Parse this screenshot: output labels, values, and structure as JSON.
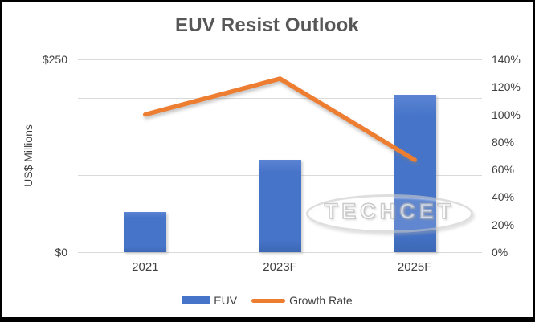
{
  "watermark": {
    "text": "TECHCET"
  },
  "colors": {
    "bar_blue": "#4674C8",
    "line_orange": "#ED7D31",
    "title_gray": "#575757",
    "axis_text": "#404040",
    "gridline": "#D9D9D9",
    "frame_border": "#000000",
    "watermark_gray": "#C3C3C3"
  },
  "chart_data": {
    "type": "combo-bar-line",
    "title": "EUV Resist Outlook",
    "categories": [
      "2021",
      "2023F",
      "2025F"
    ],
    "series": [
      {
        "name": "EUV",
        "type": "bar",
        "axis": "left",
        "unit": "US$ Millions",
        "values": [
          52,
          120,
          204
        ]
      },
      {
        "name": "Growth Rate",
        "type": "line",
        "axis": "right",
        "unit": "%",
        "values": [
          100,
          126,
          67
        ]
      }
    ],
    "left_axis": {
      "title": "US$ Millions",
      "min": 0,
      "max": 250,
      "gridline_step": 50,
      "labels": [
        {
          "value": 250,
          "label": "$250"
        },
        {
          "value": 0,
          "label": "$0"
        }
      ]
    },
    "right_axis": {
      "min": 0,
      "max": 140,
      "step": 20,
      "labels": [
        {
          "value": 140,
          "label": "140%"
        },
        {
          "value": 120,
          "label": "120%"
        },
        {
          "value": 100,
          "label": "100%"
        },
        {
          "value": 80,
          "label": "80%"
        },
        {
          "value": 60,
          "label": "60%"
        },
        {
          "value": 40,
          "label": "40%"
        },
        {
          "value": 20,
          "label": "20%"
        },
        {
          "value": 0,
          "label": "0%"
        }
      ]
    },
    "grid": "horizontal",
    "legend_position": "bottom"
  }
}
